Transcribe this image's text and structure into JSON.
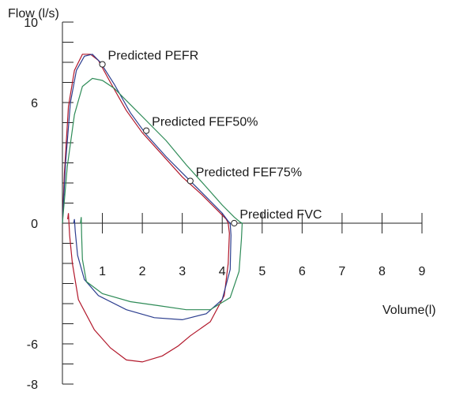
{
  "chart_data": {
    "type": "line",
    "ylabel": "Flow (l/s)",
    "xlabel": "Volume(l)",
    "x_ticks": [
      "1",
      "2",
      "3",
      "4",
      "5",
      "6",
      "7",
      "8",
      "9"
    ],
    "y_ticks": [
      "10",
      "6",
      "0",
      "-6",
      "-8"
    ],
    "xlim": [
      0,
      9
    ],
    "ylim": [
      -8,
      10
    ],
    "grid": false,
    "predicted_points": [
      {
        "label": "Predicted PEFR",
        "x": 1.0,
        "y": 7.9
      },
      {
        "label": "Predicted FEF50%",
        "x": 2.1,
        "y": 4.6
      },
      {
        "label": "Predicted FEF75%",
        "x": 3.2,
        "y": 2.1
      },
      {
        "label": "Predicted FVC",
        "x": 4.3,
        "y": 0.0
      }
    ],
    "series": [
      {
        "color": "#b2182b",
        "points": [
          [
            0.0,
            0
          ],
          [
            0.05,
            2.5
          ],
          [
            0.15,
            5.8
          ],
          [
            0.3,
            7.6
          ],
          [
            0.5,
            8.4
          ],
          [
            0.7,
            8.4
          ],
          [
            0.9,
            8.1
          ],
          [
            1.2,
            7.0
          ],
          [
            1.6,
            5.6
          ],
          [
            2.0,
            4.5
          ],
          [
            2.5,
            3.4
          ],
          [
            3.0,
            2.3
          ],
          [
            3.5,
            1.4
          ],
          [
            3.9,
            0.6
          ],
          [
            4.1,
            0.2
          ],
          [
            4.15,
            0.0
          ],
          [
            4.18,
            -0.5
          ],
          [
            4.15,
            -2.0
          ],
          [
            4.05,
            -3.6
          ],
          [
            3.7,
            -4.9
          ],
          [
            3.2,
            -5.6
          ],
          [
            2.9,
            -6.1
          ],
          [
            2.5,
            -6.6
          ],
          [
            2.0,
            -6.9
          ],
          [
            1.6,
            -6.8
          ],
          [
            1.2,
            -6.2
          ],
          [
            0.8,
            -5.3
          ],
          [
            0.4,
            -3.8
          ],
          [
            0.25,
            -2.0
          ],
          [
            0.18,
            -0.6
          ],
          [
            0.15,
            0.5
          ],
          [
            0.13,
            0.2
          ]
        ]
      },
      {
        "color": "#2c3e8f",
        "points": [
          [
            0.0,
            0
          ],
          [
            0.08,
            3.0
          ],
          [
            0.2,
            6.0
          ],
          [
            0.35,
            7.6
          ],
          [
            0.55,
            8.3
          ],
          [
            0.75,
            8.4
          ],
          [
            0.95,
            8.0
          ],
          [
            1.3,
            6.9
          ],
          [
            1.7,
            5.5
          ],
          [
            2.1,
            4.4
          ],
          [
            2.6,
            3.3
          ],
          [
            3.1,
            2.3
          ],
          [
            3.6,
            1.3
          ],
          [
            4.0,
            0.5
          ],
          [
            4.15,
            0.1
          ],
          [
            4.2,
            0.0
          ],
          [
            4.22,
            -0.6
          ],
          [
            4.2,
            -2.3
          ],
          [
            4.0,
            -3.8
          ],
          [
            3.6,
            -4.5
          ],
          [
            3.0,
            -4.8
          ],
          [
            2.3,
            -4.7
          ],
          [
            1.6,
            -4.3
          ],
          [
            0.9,
            -3.6
          ],
          [
            0.55,
            -2.8
          ],
          [
            0.38,
            -1.6
          ],
          [
            0.32,
            -0.4
          ],
          [
            0.3,
            0.2
          ],
          [
            0.28,
            0.0
          ]
        ]
      },
      {
        "color": "#2e8b57",
        "points": [
          [
            0.0,
            0
          ],
          [
            0.12,
            2.8
          ],
          [
            0.3,
            5.4
          ],
          [
            0.5,
            6.8
          ],
          [
            0.75,
            7.2
          ],
          [
            1.0,
            7.1
          ],
          [
            1.3,
            6.7
          ],
          [
            1.7,
            5.9
          ],
          [
            2.1,
            5.1
          ],
          [
            2.6,
            4.1
          ],
          [
            3.1,
            2.9
          ],
          [
            3.6,
            1.8
          ],
          [
            4.0,
            0.9
          ],
          [
            4.3,
            0.3
          ],
          [
            4.45,
            0.05
          ],
          [
            4.5,
            0.0
          ],
          [
            4.48,
            -0.8
          ],
          [
            4.42,
            -2.4
          ],
          [
            4.2,
            -3.7
          ],
          [
            3.7,
            -4.3
          ],
          [
            3.1,
            -4.3
          ],
          [
            2.4,
            -4.1
          ],
          [
            1.7,
            -3.9
          ],
          [
            1.0,
            -3.5
          ],
          [
            0.6,
            -2.9
          ],
          [
            0.5,
            -1.8
          ],
          [
            0.48,
            -0.6
          ],
          [
            0.47,
            0.3
          ],
          [
            0.45,
            0.0
          ]
        ]
      }
    ]
  }
}
